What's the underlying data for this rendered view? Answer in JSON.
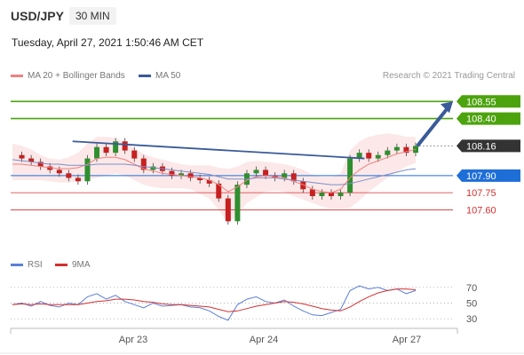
{
  "header": {
    "symbol": "USD/JPY",
    "timeframe": "30 MIN",
    "datetime": "Tuesday, April 27, 2021 1:50:46 AM CET"
  },
  "legend": {
    "ma20_label": "MA 20 + Bollinger Bands",
    "ma50_label": "MA 50",
    "credit": "Research © 2021 Trading Central"
  },
  "rsi_legend": {
    "rsi_label": "RSI",
    "ma_label": "9MA"
  },
  "colors": {
    "ma20": "#f08080",
    "ma50": "#3a5a99",
    "green": "#4ca30d",
    "blue": "#1e6ed8",
    "red": "#d43030",
    "dark": "#333333",
    "bull": "#2f8f2f",
    "bear": "#c62020",
    "rsi": "#5b7fd6",
    "rsi_ma": "#d43030"
  },
  "chart_data": {
    "type": "candlestick",
    "symbol": "USD/JPY",
    "timeframe": "30 MIN",
    "x_ticks": [
      "Apr 23",
      "Apr 24",
      "Apr 27"
    ],
    "y_range": [
      107.3,
      108.7
    ],
    "levels": [
      {
        "value": 108.55,
        "label": "108.55",
        "kind": "resistance"
      },
      {
        "value": 108.4,
        "label": "108.40",
        "kind": "resistance"
      },
      {
        "value": 108.16,
        "label": "108.16",
        "kind": "last_price"
      },
      {
        "value": 107.9,
        "label": "107.90",
        "kind": "pivot"
      },
      {
        "value": 107.75,
        "label": "107.75",
        "kind": "support"
      },
      {
        "value": 107.6,
        "label": "107.60",
        "kind": "support"
      }
    ],
    "price": [
      108.08,
      108.05,
      108.02,
      107.98,
      107.95,
      107.92,
      107.88,
      107.85,
      108.05,
      108.15,
      108.1,
      108.2,
      108.12,
      108.05,
      107.95,
      107.98,
      107.94,
      107.9,
      107.92,
      107.88,
      107.86,
      107.83,
      107.7,
      107.5,
      107.82,
      107.92,
      107.95,
      107.9,
      107.88,
      107.92,
      107.85,
      107.78,
      107.72,
      107.75,
      107.72,
      107.75,
      108.05,
      108.1,
      108.05,
      108.08,
      108.12,
      108.15,
      108.1,
      108.16
    ],
    "ma20": [
      108.0,
      108.0,
      107.99,
      107.98,
      107.97,
      107.96,
      107.96,
      107.97,
      108.0,
      108.05,
      108.06,
      108.06,
      108.04,
      108.0,
      107.96,
      107.94,
      107.92,
      107.91,
      107.9,
      107.89,
      107.88,
      107.86,
      107.82,
      107.76,
      107.8,
      107.86,
      107.89,
      107.9,
      107.89,
      107.88,
      107.85,
      107.82,
      107.78,
      107.76,
      107.75,
      107.78,
      107.88,
      107.95,
      108.0,
      108.03,
      108.06,
      108.09,
      108.11,
      108.13
    ],
    "bb_upper": [
      108.18,
      108.16,
      108.13,
      108.08,
      108.05,
      108.04,
      108.06,
      108.1,
      108.18,
      108.24,
      108.24,
      108.23,
      108.19,
      108.14,
      108.09,
      108.06,
      108.04,
      108.02,
      108.0,
      107.99,
      107.99,
      107.99,
      107.97,
      107.96,
      107.98,
      108.02,
      108.03,
      108.02,
      108.01,
      108.0,
      107.98,
      107.95,
      107.91,
      107.89,
      107.89,
      107.92,
      108.12,
      108.2,
      108.24,
      108.26,
      108.27,
      108.26,
      108.24,
      108.24
    ],
    "bb_lower": [
      107.86,
      107.86,
      107.86,
      107.86,
      107.85,
      107.84,
      107.84,
      107.85,
      107.86,
      107.88,
      107.9,
      107.92,
      107.9,
      107.86,
      107.82,
      107.8,
      107.79,
      107.79,
      107.79,
      107.78,
      107.74,
      107.7,
      107.6,
      107.48,
      107.56,
      107.66,
      107.71,
      107.76,
      107.77,
      107.76,
      107.72,
      107.69,
      107.66,
      107.63,
      107.61,
      107.61,
      107.62,
      107.68,
      107.76,
      107.82,
      107.88,
      107.93,
      107.98,
      108.01
    ],
    "ma50": [
      108.04,
      108.03,
      108.02,
      108.01,
      108.0,
      108.0,
      107.99,
      107.99,
      107.99,
      108.0,
      108.0,
      108.0,
      108.0,
      107.99,
      107.98,
      107.97,
      107.96,
      107.95,
      107.94,
      107.93,
      107.92,
      107.91,
      107.89,
      107.87,
      107.87,
      107.87,
      107.88,
      107.88,
      107.88,
      107.87,
      107.86,
      107.85,
      107.84,
      107.83,
      107.82,
      107.82,
      107.83,
      107.85,
      107.87,
      107.89,
      107.91,
      107.93,
      107.95,
      107.96
    ],
    "trendline": {
      "from": [
        0.14,
        108.2
      ],
      "to": [
        0.8,
        108.05
      ]
    },
    "projection": {
      "from": 108.16,
      "to": 108.55
    },
    "rsi": {
      "levels": [
        70,
        50,
        30
      ],
      "values": [
        48,
        50,
        46,
        52,
        47,
        45,
        50,
        48,
        58,
        62,
        55,
        60,
        52,
        48,
        44,
        50,
        46,
        47,
        48,
        45,
        44,
        40,
        33,
        28,
        48,
        55,
        58,
        52,
        50,
        54,
        46,
        40,
        35,
        34,
        38,
        42,
        66,
        72,
        68,
        70,
        66,
        68,
        62,
        66
      ],
      "ma9": [
        48,
        49,
        48,
        49,
        48,
        48,
        48,
        48,
        50,
        52,
        53,
        55,
        55,
        54,
        52,
        51,
        49,
        48,
        48,
        47,
        46,
        45,
        42,
        39,
        40,
        43,
        46,
        48,
        50,
        52,
        51,
        49,
        46,
        43,
        41,
        40,
        45,
        52,
        58,
        63,
        66,
        68,
        68,
        67
      ]
    }
  }
}
